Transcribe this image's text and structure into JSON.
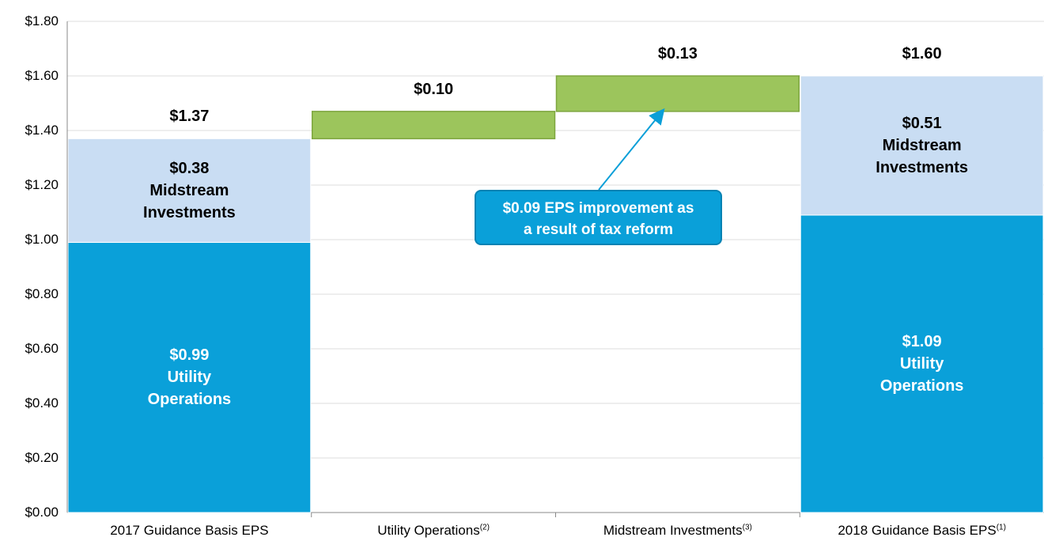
{
  "chart_data": {
    "type": "waterfall",
    "categories": [
      "2017 Guidance Basis EPS",
      "Utility Operations",
      "Midstream Investments",
      "2018 Guidance Basis EPS"
    ],
    "category_notes": [
      null,
      "(2)",
      "(3)",
      "(1)"
    ],
    "series": [
      {
        "name": "Utility Operations",
        "color": "#0aa0d9",
        "label_color": "#ffffff",
        "values": [
          0.99,
          null,
          null,
          1.09
        ],
        "value_labels": [
          "$0.99",
          null,
          null,
          "$1.09"
        ]
      },
      {
        "name": "Midstream Investments",
        "color": "#c9ddf3",
        "label_color": "#000000",
        "values": [
          0.38,
          null,
          null,
          0.51
        ],
        "value_labels": [
          "$0.38",
          null,
          null,
          "$0.51"
        ]
      },
      {
        "color": "#9cc55c",
        "label_color": "#000000",
        "values": [
          null,
          0.1,
          0.13,
          null
        ],
        "value_labels": [
          null,
          "$0.10",
          "$0.13",
          null
        ]
      }
    ],
    "totals": {
      "values": [
        1.37,
        null,
        null,
        1.6
      ],
      "value_labels": [
        "$1.37",
        null,
        null,
        "$1.60"
      ]
    },
    "annotation": "$0.09 EPS improvement as a result of tax reform",
    "ylim": [
      0,
      1.8
    ],
    "yticks": [
      {
        "value": 0,
        "label": "$0.00"
      },
      {
        "value": 0.2,
        "label": "$0.20"
      },
      {
        "value": 0.4,
        "label": "$0.40"
      },
      {
        "value": 0.6,
        "label": "$0.60"
      },
      {
        "value": 0.8,
        "label": "$0.80"
      },
      {
        "value": 1.0,
        "label": "$1.00"
      },
      {
        "value": 1.2,
        "label": "$1.20"
      },
      {
        "value": 1.4,
        "label": "$1.40"
      },
      {
        "value": 1.6,
        "label": "$1.60"
      },
      {
        "value": 1.8,
        "label": "$1.80"
      }
    ],
    "grid": true
  }
}
